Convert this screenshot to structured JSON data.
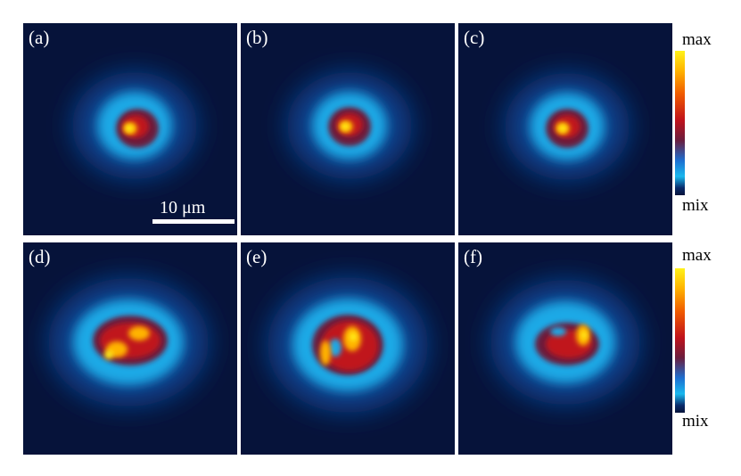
{
  "panels": [
    {
      "label": "(a)"
    },
    {
      "label": "(b)"
    },
    {
      "label": "(c)"
    },
    {
      "label": "(d)"
    },
    {
      "label": "(e)"
    },
    {
      "label": "(f)"
    }
  ],
  "scale_bar": {
    "text": "10 μm"
  },
  "colorbars": [
    {
      "max_label": "max",
      "min_label": "mix"
    },
    {
      "max_label": "max",
      "min_label": "mix"
    }
  ],
  "colors": {
    "background": "#06133a",
    "halo": "#1fa9e6",
    "core_red": "#c0121b",
    "core_yellow": "#fff21a"
  }
}
